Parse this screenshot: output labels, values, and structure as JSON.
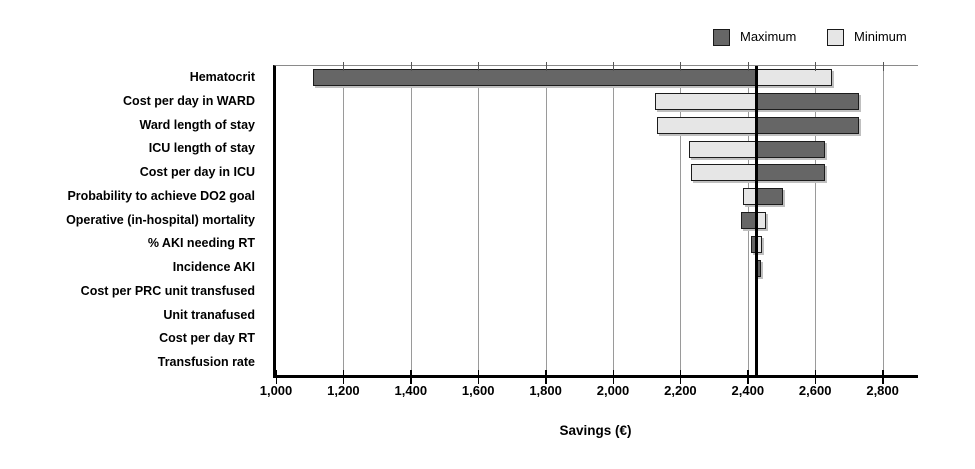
{
  "legend": {
    "max_label": "Maximum",
    "min_label": "Minimum"
  },
  "colors": {
    "max_fill": "#666666",
    "min_fill": "#e6e6e6",
    "bar_border": "#1c1c1c",
    "gridline": "#9a9a9a",
    "axis": "#000000"
  },
  "chart_data": {
    "type": "bar",
    "subtype": "tornado",
    "orientation": "horizontal",
    "xlabel": "Savings (€)",
    "legend_position": "top-right",
    "grid": true,
    "baseline": 2425,
    "xlim": [
      1000,
      2905
    ],
    "xticks": [
      1000,
      1200,
      1400,
      1600,
      1800,
      2000,
      2200,
      2400,
      2600,
      2800
    ],
    "xtick_labels": [
      "1,000",
      "1,200",
      "1,400",
      "1,600",
      "1,800",
      "2,000",
      "2,200",
      "2,400",
      "2,600",
      "2,800"
    ],
    "series_names": [
      "Maximum",
      "Minimum"
    ],
    "rows": [
      {
        "label": "Hematocrit",
        "max": 1110,
        "min": 2650
      },
      {
        "label": "Cost per day in WARD",
        "min": 2125,
        "max": 2730
      },
      {
        "label": "Ward length of stay",
        "min": 2130,
        "max": 2730
      },
      {
        "label": "ICU length of stay",
        "min": 2225,
        "max": 2630
      },
      {
        "label": "Cost per day in ICU",
        "min": 2230,
        "max": 2630
      },
      {
        "label": "Probability to achieve DO2 goal",
        "min": 2385,
        "max": 2505
      },
      {
        "label": "Operative (in-hospital) mortality",
        "max": 2380,
        "min": 2455
      },
      {
        "label": "% AKI needing RT",
        "max": 2408,
        "min": 2442
      },
      {
        "label": "Incidence AKI",
        "min": 2422,
        "max": 2438
      },
      {
        "label": "Cost per PRC unit transfused",
        "min": 2425,
        "max": 2425
      },
      {
        "label": "Unit tranafused",
        "min": 2425,
        "max": 2425
      },
      {
        "label": "Cost per day RT",
        "min": 2425,
        "max": 2425
      },
      {
        "label": "Transfusion rate",
        "min": 2425,
        "max": 2425
      }
    ]
  }
}
